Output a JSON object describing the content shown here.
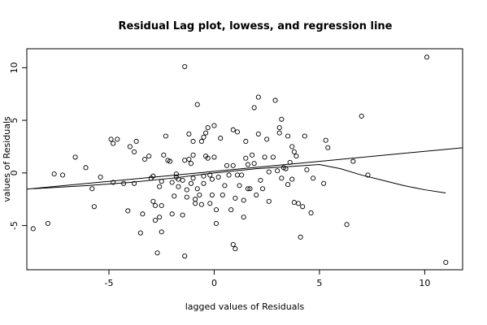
{
  "chart_data": {
    "type": "scatter",
    "title": "Residual Lag plot, lowess, and regression line",
    "xlabel": "lagged values of Residuals",
    "ylabel": "values of Residuals",
    "xlim": [
      -8.9,
      11.8
    ],
    "ylim": [
      -9.2,
      11.8
    ],
    "x_ticks": [
      -5,
      0,
      5,
      10
    ],
    "y_ticks": [
      -5,
      0,
      5,
      10
    ],
    "grid": false,
    "legend": "none",
    "colors": {
      "points": "#000000",
      "lines": "#000000",
      "frame": "#000000"
    },
    "points": [
      [
        -8.6,
        -5.3
      ],
      [
        -7.9,
        -4.8
      ],
      [
        -7.6,
        -0.1
      ],
      [
        -7.2,
        -0.2
      ],
      [
        -6.6,
        1.5
      ],
      [
        -6.1,
        0.5
      ],
      [
        -5.8,
        -1.5
      ],
      [
        -5.7,
        -3.2
      ],
      [
        -5.4,
        -0.4
      ],
      [
        -4.9,
        3.2
      ],
      [
        -4.8,
        2.8
      ],
      [
        -4.8,
        -0.9
      ],
      [
        -4.6,
        3.2
      ],
      [
        -4.3,
        -1.0
      ],
      [
        -4.1,
        -3.6
      ],
      [
        -4.0,
        2.5
      ],
      [
        -3.8,
        -1.0
      ],
      [
        -3.8,
        2.0
      ],
      [
        -3.7,
        3.0
      ],
      [
        -3.5,
        -5.7
      ],
      [
        -3.4,
        -3.9
      ],
      [
        -3.3,
        1.3
      ],
      [
        -3.1,
        1.6
      ],
      [
        -3.0,
        -0.5
      ],
      [
        -2.9,
        -0.3
      ],
      [
        -2.9,
        -2.7
      ],
      [
        -2.8,
        -3.1
      ],
      [
        -2.8,
        -4.5
      ],
      [
        -2.7,
        -7.6
      ],
      [
        -2.6,
        -4.2
      ],
      [
        -2.6,
        -1.3
      ],
      [
        -2.5,
        -0.8
      ],
      [
        -2.5,
        -3.1
      ],
      [
        -2.5,
        -5.6
      ],
      [
        -2.4,
        1.7
      ],
      [
        -2.3,
        3.5
      ],
      [
        -2.2,
        1.2
      ],
      [
        -2.1,
        1.1
      ],
      [
        -2.0,
        -0.9
      ],
      [
        -2.0,
        -3.9
      ],
      [
        -1.9,
        -2.2
      ],
      [
        -1.8,
        -0.4
      ],
      [
        -1.8,
        -0.1
      ],
      [
        -1.7,
        -1.3
      ],
      [
        -1.7,
        -0.6
      ],
      [
        -1.5,
        -4.0
      ],
      [
        -1.5,
        -0.7
      ],
      [
        -1.4,
        1.2
      ],
      [
        -1.3,
        -1.6
      ],
      [
        -1.3,
        -2.3
      ],
      [
        -1.4,
        10.1
      ],
      [
        -1.4,
        -7.9
      ],
      [
        -1.2,
        3.7
      ],
      [
        -1.2,
        1.3
      ],
      [
        -1.1,
        0.9
      ],
      [
        -1.1,
        -1.0
      ],
      [
        -1.0,
        3.0
      ],
      [
        -1.0,
        -0.5
      ],
      [
        -1.0,
        1.7
      ],
      [
        -0.9,
        -2.5
      ],
      [
        -0.9,
        -2.9
      ],
      [
        -0.8,
        -1.5
      ],
      [
        -0.8,
        6.5
      ],
      [
        -0.7,
        -2.1
      ],
      [
        -0.6,
        -3.0
      ],
      [
        -0.6,
        3.0
      ],
      [
        -0.5,
        -1.0
      ],
      [
        -0.5,
        -0.3
      ],
      [
        -0.5,
        3.4
      ],
      [
        -0.4,
        3.8
      ],
      [
        -0.4,
        1.6
      ],
      [
        -0.3,
        4.3
      ],
      [
        -0.3,
        1.4
      ],
      [
        -0.2,
        -0.2
      ],
      [
        -0.2,
        -2.9
      ],
      [
        -0.1,
        -2.1
      ],
      [
        -0.1,
        -0.6
      ],
      [
        0.0,
        4.5
      ],
      [
        0.0,
        1.5
      ],
      [
        0.1,
        -4.8
      ],
      [
        0.1,
        -3.5
      ],
      [
        0.2,
        -0.4
      ],
      [
        0.3,
        3.3
      ],
      [
        0.4,
        -2.1
      ],
      [
        0.5,
        -1.2
      ],
      [
        0.6,
        0.7
      ],
      [
        0.7,
        -0.2
      ],
      [
        0.8,
        -3.5
      ],
      [
        0.9,
        -6.8
      ],
      [
        0.9,
        4.1
      ],
      [
        0.9,
        0.7
      ],
      [
        1.0,
        -2.4
      ],
      [
        1.0,
        -7.2
      ],
      [
        1.1,
        3.9
      ],
      [
        1.1,
        -0.2
      ],
      [
        1.2,
        -1.2
      ],
      [
        1.3,
        -0.2
      ],
      [
        1.4,
        -2.6
      ],
      [
        1.4,
        -4.2
      ],
      [
        1.5,
        1.4
      ],
      [
        1.5,
        3.0
      ],
      [
        1.6,
        -1.5
      ],
      [
        1.6,
        0.8
      ],
      [
        1.7,
        -1.5
      ],
      [
        1.8,
        1.7
      ],
      [
        1.9,
        6.2
      ],
      [
        1.9,
        0.9
      ],
      [
        2.0,
        -2.1
      ],
      [
        2.1,
        7.2
      ],
      [
        2.1,
        3.7
      ],
      [
        2.2,
        -0.7
      ],
      [
        2.3,
        -1.5
      ],
      [
        2.4,
        1.5
      ],
      [
        2.5,
        3.2
      ],
      [
        2.6,
        -2.7
      ],
      [
        2.6,
        0.1
      ],
      [
        2.8,
        1.5
      ],
      [
        2.9,
        6.9
      ],
      [
        3.0,
        0.2
      ],
      [
        3.1,
        4.3
      ],
      [
        3.1,
        3.8
      ],
      [
        3.2,
        5.1
      ],
      [
        3.2,
        -0.5
      ],
      [
        3.3,
        0.5
      ],
      [
        3.4,
        0.4
      ],
      [
        3.5,
        3.5
      ],
      [
        3.5,
        -1.1
      ],
      [
        3.6,
        1.0
      ],
      [
        3.7,
        -0.6
      ],
      [
        3.7,
        2.5
      ],
      [
        3.8,
        -2.8
      ],
      [
        3.8,
        2.0
      ],
      [
        3.9,
        1.6
      ],
      [
        4.0,
        -2.9
      ],
      [
        4.1,
        -6.1
      ],
      [
        4.2,
        -3.2
      ],
      [
        4.3,
        3.5
      ],
      [
        4.4,
        0.3
      ],
      [
        4.6,
        -3.8
      ],
      [
        4.7,
        -0.5
      ],
      [
        5.2,
        -1.0
      ],
      [
        5.3,
        3.1
      ],
      [
        5.4,
        2.4
      ],
      [
        6.3,
        -4.9
      ],
      [
        6.6,
        1.1
      ],
      [
        7.0,
        5.4
      ],
      [
        7.3,
        -0.2
      ],
      [
        10.1,
        11.0
      ],
      [
        11.0,
        -8.5
      ]
    ],
    "lowess": [
      [
        -8.6,
        -1.5
      ],
      [
        -6.0,
        -1.2
      ],
      [
        -4.0,
        -0.9
      ],
      [
        -2.0,
        -0.5
      ],
      [
        0.0,
        0.0
      ],
      [
        2.0,
        0.4
      ],
      [
        3.5,
        0.6
      ],
      [
        5.0,
        0.8
      ],
      [
        6.0,
        0.4
      ],
      [
        7.0,
        -0.2
      ],
      [
        8.0,
        -0.7
      ],
      [
        9.0,
        -1.2
      ],
      [
        10.0,
        -1.6
      ],
      [
        11.0,
        -1.9
      ]
    ],
    "regression": {
      "intercept": 0.15,
      "slope": 0.19,
      "x_from": -8.9,
      "x_to": 11.8
    }
  }
}
